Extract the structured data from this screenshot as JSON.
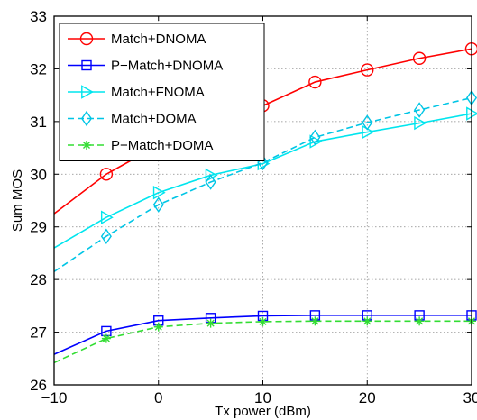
{
  "chart_data": {
    "type": "line",
    "xlabel": "Tx power  (dBm)",
    "ylabel": "Sum MOS",
    "xlim": [
      -10,
      30
    ],
    "ylim": [
      26,
      33
    ],
    "xticks": [
      -10,
      0,
      10,
      20,
      30
    ],
    "yticks": [
      26,
      27,
      28,
      29,
      30,
      31,
      32,
      33
    ],
    "xtick_labels": [
      "−10",
      "0",
      "10",
      "20",
      "30"
    ],
    "ytick_labels": [
      "26",
      "27",
      "28",
      "29",
      "30",
      "31",
      "32",
      "33"
    ],
    "grid": true,
    "legend_position": "top-left",
    "series": [
      {
        "name": "Match+DNOMA",
        "color": "#ff0000",
        "marker": "circle",
        "dash": "solid",
        "x": [
          -10,
          -5,
          0,
          5,
          10,
          15,
          20,
          25,
          30
        ],
        "y": [
          29.25,
          30.0,
          30.55,
          30.95,
          31.3,
          31.75,
          31.98,
          32.2,
          32.38
        ]
      },
      {
        "name": "P−Match+DNOMA",
        "color": "#0000ff",
        "marker": "square",
        "dash": "solid",
        "x": [
          -10,
          -5,
          0,
          5,
          10,
          15,
          20,
          25,
          30
        ],
        "y": [
          26.58,
          27.02,
          27.22,
          27.27,
          27.31,
          27.32,
          27.32,
          27.32,
          27.32
        ]
      },
      {
        "name": "Match+FNOMA",
        "color": "#00e5ee",
        "marker": "triangle-right",
        "dash": "solid",
        "x": [
          -10,
          -5,
          0,
          5,
          10,
          15,
          20,
          25,
          30
        ],
        "y": [
          28.6,
          29.18,
          29.65,
          29.98,
          30.2,
          30.62,
          30.8,
          30.97,
          31.15
        ]
      },
      {
        "name": "Match+DOMA",
        "color": "#00c5e5",
        "marker": "diamond",
        "dash": "dashed",
        "x": [
          -10,
          -5,
          0,
          5,
          10,
          15,
          20,
          25,
          30
        ],
        "y": [
          28.15,
          28.82,
          29.42,
          29.85,
          30.22,
          30.7,
          30.98,
          31.22,
          31.45
        ]
      },
      {
        "name": "P−Match+DOMA",
        "color": "#33dd33",
        "marker": "asterisk",
        "dash": "dashed",
        "x": [
          -10,
          -5,
          0,
          5,
          10,
          15,
          20,
          25,
          30
        ],
        "y": [
          26.42,
          26.88,
          27.1,
          27.17,
          27.2,
          27.21,
          27.21,
          27.21,
          27.21
        ]
      }
    ]
  }
}
